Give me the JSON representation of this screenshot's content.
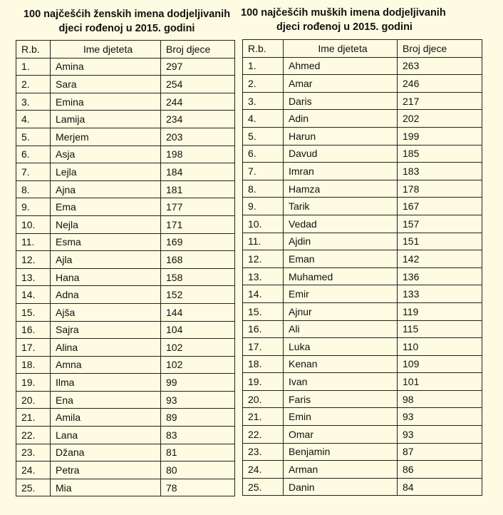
{
  "female": {
    "title1": "100 najčešćih ženskih  imena dodjeljivanih",
    "title2": "djeci rođenoj u 2015. godini",
    "headers": [
      "R.b.",
      "Ime djeteta",
      "Broj djece"
    ],
    "rows": [
      [
        "1.",
        "Amina",
        "297"
      ],
      [
        "2.",
        "Sara",
        "254"
      ],
      [
        "3.",
        "Emina",
        "244"
      ],
      [
        "4.",
        "Lamija",
        "234"
      ],
      [
        "5.",
        "Merjem",
        "203"
      ],
      [
        "6.",
        "Asja",
        "198"
      ],
      [
        "7.",
        "Lejla",
        "184"
      ],
      [
        "8.",
        "Ajna",
        "181"
      ],
      [
        "9.",
        "Ema",
        "177"
      ],
      [
        "10.",
        "Nejla",
        "171"
      ],
      [
        "11.",
        "Esma",
        "169"
      ],
      [
        "12.",
        "Ajla",
        "168"
      ],
      [
        "13.",
        "Hana",
        "158"
      ],
      [
        "14.",
        "Adna",
        "152"
      ],
      [
        "15.",
        "Ajša",
        "144"
      ],
      [
        "16.",
        "Sajra",
        "104"
      ],
      [
        "17.",
        "Alina",
        "102"
      ],
      [
        "18.",
        "Amna",
        "102"
      ],
      [
        "19.",
        "Ilma",
        "99"
      ],
      [
        "20.",
        "Ena",
        "93"
      ],
      [
        "21.",
        "Amila",
        "89"
      ],
      [
        "22.",
        "Lana",
        "83"
      ],
      [
        "23.",
        "Džana",
        "81"
      ],
      [
        "24.",
        "Petra",
        "80"
      ],
      [
        "25.",
        "Mia",
        "78"
      ]
    ]
  },
  "male": {
    "title1": "100 najčešćih muških imena dodjeljivanih",
    "title2": "djeci rođenoj u 2015. godini",
    "headers": [
      "R.b.",
      "Ime djeteta",
      "Broj djece"
    ],
    "rows": [
      [
        "1.",
        "Ahmed",
        "263"
      ],
      [
        "2.",
        "Amar",
        "246"
      ],
      [
        "3.",
        "Daris",
        "217"
      ],
      [
        "4.",
        "Adin",
        "202"
      ],
      [
        "5.",
        "Harun",
        "199"
      ],
      [
        "6.",
        "Davud",
        "185"
      ],
      [
        "7.",
        "Imran",
        "183"
      ],
      [
        "8.",
        "Hamza",
        "178"
      ],
      [
        "9.",
        "Tarik",
        "167"
      ],
      [
        "10.",
        "Vedad",
        "157"
      ],
      [
        "11.",
        "Ajdin",
        "151"
      ],
      [
        "12.",
        "Eman",
        "142"
      ],
      [
        "13.",
        "Muhamed",
        "136"
      ],
      [
        "14.",
        "Emir",
        "133"
      ],
      [
        "15.",
        "Ajnur",
        "119"
      ],
      [
        "16.",
        "Ali",
        "115"
      ],
      [
        "17.",
        "Luka",
        "110"
      ],
      [
        "18.",
        "Kenan",
        "109"
      ],
      [
        "19.",
        "Ivan",
        "101"
      ],
      [
        "20.",
        "Faris",
        "98"
      ],
      [
        "21.",
        "Emin",
        "93"
      ],
      [
        "22.",
        "Omar",
        "93"
      ],
      [
        "23.",
        "Benjamin",
        "87"
      ],
      [
        "24.",
        "Arman",
        "86"
      ],
      [
        "25.",
        "Danin",
        "84"
      ]
    ]
  }
}
